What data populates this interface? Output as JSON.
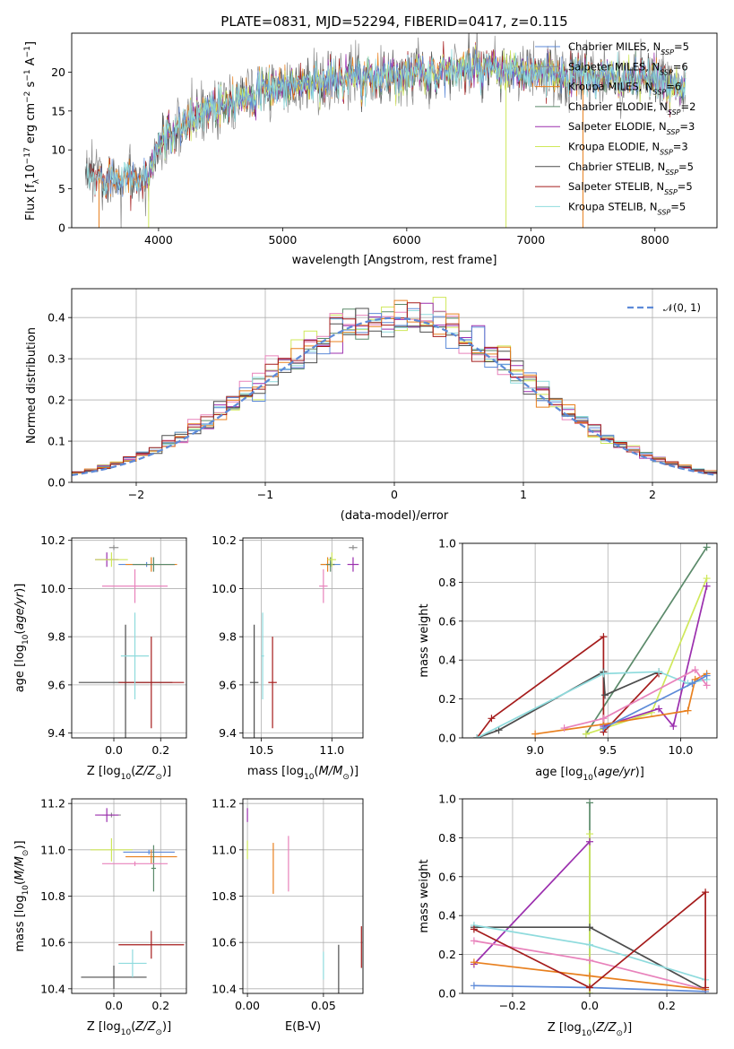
{
  "colors": {
    "chabrier_miles": "#5d8ad8",
    "salpeter_miles": "#8d8d8d",
    "kroupa_miles": "#e8801f",
    "chabrier_elodie": "#5b8a6a",
    "salpeter_elodie": "#9b2fae",
    "kroupa_elodie": "#cfe85a",
    "chabrier_stelib": "#4d4d4d",
    "salpeter_stelib": "#a51c1c",
    "kroupa_stelib": "#8fdbdd",
    "pink": "#e882bb",
    "normal": "#5d8ad8",
    "grid": "#b0b0b0"
  },
  "chart_data": [
    {
      "id": "spectrum",
      "type": "line",
      "title": "PLATE=0831, MJD=52294, FIBERID=0417, z=0.115",
      "xlabel": "wavelength [Angstrom, rest frame]",
      "ylabel": "Flux [f_λ10⁻¹⁷ erg cm⁻² s⁻¹ A⁻¹]",
      "xlim": [
        3300,
        8500
      ],
      "ylim": [
        0,
        25
      ],
      "xticks": [
        4000,
        5000,
        6000,
        7000,
        8000
      ],
      "yticks": [
        0,
        5,
        10,
        15,
        20
      ],
      "grid": false,
      "legend_position": "top-right",
      "series": [
        {
          "name": "Chabrier MILES, N_SSP=5",
          "n_ssp": "5"
        },
        {
          "name": "Salpeter MILES, N_SSP=6",
          "n_ssp": "6"
        },
        {
          "name": "Kroupa MILES, N_SSP=6",
          "n_ssp": "6"
        },
        {
          "name": "Chabrier ELODIE, N_SSP=2",
          "n_ssp": "2"
        },
        {
          "name": "Salpeter ELODIE, N_SSP=3",
          "n_ssp": "3"
        },
        {
          "name": "Kroupa ELODIE, N_SSP=3",
          "n_ssp": "3"
        },
        {
          "name": "Chabrier STELIB, N_SSP=5",
          "n_ssp": "5"
        },
        {
          "name": "Salpeter STELIB, N_SSP=5",
          "n_ssp": "5"
        },
        {
          "name": "Kroupa STELIB, N_SSP=5",
          "n_ssp": "5"
        }
      ],
      "legend_items": [
        {
          "pre": "Chabrier MILES, N",
          "sub": "SSP",
          "post": "=5"
        },
        {
          "pre": "Salpeter MILES, N",
          "sub": "SSP",
          "post": "=6"
        },
        {
          "pre": "Kroupa MILES, N",
          "sub": "SSP",
          "post": "=6"
        },
        {
          "pre": "Chabrier ELODIE, N",
          "sub": "SSP",
          "post": "=2"
        },
        {
          "pre": "Salpeter ELODIE, N",
          "sub": "SSP",
          "post": "=3"
        },
        {
          "pre": "Kroupa ELODIE, N",
          "sub": "SSP",
          "post": "=3"
        },
        {
          "pre": "Chabrier STELIB, N",
          "sub": "SSP",
          "post": "=5"
        },
        {
          "pre": "Salpeter STELIB, N",
          "sub": "SSP",
          "post": "=5"
        },
        {
          "pre": "Kroupa STELIB, N",
          "sub": "SSP",
          "post": "=5"
        }
      ],
      "continuum": {
        "x": [
          3450,
          3550,
          3700,
          3850,
          3920,
          3980,
          4050,
          4200,
          4400,
          4600,
          4800,
          5000,
          5200,
          5400,
          5600,
          5800,
          6000,
          6200,
          6400,
          6600,
          6800,
          7000,
          7200,
          7400,
          7600,
          7800,
          8000,
          8250
        ],
        "y": [
          6.2,
          6.5,
          6.8,
          6.0,
          6.5,
          10.0,
          11.5,
          13.0,
          15.5,
          16.5,
          17.5,
          18.0,
          18.5,
          19.0,
          19.2,
          19.5,
          19.8,
          20.0,
          20.2,
          20.2,
          20.0,
          19.8,
          19.6,
          19.5,
          19.3,
          19.0,
          18.8,
          18.4
        ]
      }
    },
    {
      "id": "residuals",
      "type": "histogram",
      "xlabel": "(data-model)/error",
      "ylabel": "Normed distribution",
      "xlim": [
        -2.5,
        2.5
      ],
      "ylim": [
        0,
        0.47
      ],
      "xticks": [
        -2,
        -1,
        0,
        1,
        2
      ],
      "yticks": [
        0.0,
        0.1,
        0.2,
        0.3,
        0.4
      ],
      "grid": true,
      "legend_position": "top-right",
      "legend_label": "𝒩(0, 1)",
      "bin_width": 0.1
    },
    {
      "id": "age_vs_Z",
      "type": "scatter",
      "xlabel": "Z [log10(Z/Z☉)]",
      "ylabel": "age [log10(age/yr)]",
      "xlim": [
        -0.18,
        0.31
      ],
      "ylim": [
        9.38,
        10.21
      ],
      "xticks": [
        0.0,
        0.2
      ],
      "yticks": [
        9.4,
        9.6,
        9.8,
        10.0,
        10.2
      ],
      "grid": true,
      "points": [
        {
          "series": "chabrier_miles",
          "x": 0.14,
          "y": 10.1,
          "xerr": 0.12,
          "yerr": 0.01
        },
        {
          "series": "salpeter_miles",
          "x": 0.0,
          "y": 10.17,
          "xerr": 0.02,
          "yerr": 0.01
        },
        {
          "series": "kroupa_miles",
          "x": 0.16,
          "y": 10.1,
          "xerr": 0.11,
          "yerr": 0.03
        },
        {
          "series": "chabrier_elodie",
          "x": 0.17,
          "y": 10.1,
          "xerr": 0.09,
          "yerr": 0.03
        },
        {
          "series": "salpeter_elodie",
          "x": -0.03,
          "y": 10.12,
          "xerr": 0.05,
          "yerr": 0.03
        },
        {
          "series": "kroupa_elodie",
          "x": -0.01,
          "y": 10.12,
          "xerr": 0.07,
          "yerr": 0.03
        },
        {
          "series": "chabrier_stelib",
          "x": 0.05,
          "y": 9.61,
          "xerr": 0.2,
          "yerr": 0.24
        },
        {
          "series": "salpeter_stelib",
          "x": 0.16,
          "y": 9.61,
          "xerr": 0.14,
          "yerr": 0.19
        },
        {
          "series": "kroupa_stelib",
          "x": 0.09,
          "y": 9.72,
          "xerr": 0.06,
          "yerr": 0.18
        },
        {
          "series": "pink",
          "x": 0.09,
          "y": 10.01,
          "xerr": 0.14,
          "yerr": 0.07
        }
      ]
    },
    {
      "id": "age_vs_mass",
      "type": "scatter",
      "xlabel": "mass [log10(M/M☉)]",
      "ylabel": "",
      "xlim": [
        10.37,
        11.22
      ],
      "ylim": [
        9.38,
        10.21
      ],
      "xticks": [
        10.5,
        11.0
      ],
      "yticks": [
        9.4,
        9.6,
        9.8,
        10.0,
        10.2
      ],
      "grid": true,
      "points": [
        {
          "series": "chabrier_miles",
          "x": 10.99,
          "y": 10.1,
          "xerr": 0.07,
          "yerr": 0.01
        },
        {
          "series": "salpeter_miles",
          "x": 11.15,
          "y": 10.17,
          "xerr": 0.03,
          "yerr": 0.01
        },
        {
          "series": "kroupa_miles",
          "x": 10.97,
          "y": 10.1,
          "xerr": 0.05,
          "yerr": 0.03
        },
        {
          "series": "chabrier_elodie",
          "x": 10.99,
          "y": 10.1,
          "xerr": 0.03,
          "yerr": 0.03
        },
        {
          "series": "salpeter_elodie",
          "x": 11.15,
          "y": 10.1,
          "xerr": 0.04,
          "yerr": 0.03
        },
        {
          "series": "kroupa_elodie",
          "x": 11.0,
          "y": 10.12,
          "xerr": 0.03,
          "yerr": 0.03
        },
        {
          "series": "chabrier_stelib",
          "x": 10.45,
          "y": 9.61,
          "xerr": 0.03,
          "yerr": 0.24
        },
        {
          "series": "salpeter_stelib",
          "x": 10.58,
          "y": 9.61,
          "xerr": 0.03,
          "yerr": 0.19
        },
        {
          "series": "kroupa_stelib",
          "x": 10.51,
          "y": 9.72,
          "xerr": 0.01,
          "yerr": 0.18
        },
        {
          "series": "pink",
          "x": 10.94,
          "y": 10.01,
          "xerr": 0.03,
          "yerr": 0.07
        }
      ]
    },
    {
      "id": "weight_vs_age",
      "type": "line",
      "xlabel": "age [log10(age/yr)]",
      "ylabel": "mass weight",
      "xlim": [
        8.5,
        10.25
      ],
      "ylim": [
        0,
        1
      ],
      "xticks": [
        9.0,
        9.5,
        10.0
      ],
      "yticks": [
        0.0,
        0.2,
        0.4,
        0.6,
        0.8,
        1.0
      ],
      "grid": true,
      "series": [
        {
          "key": "chabrier_elodie",
          "x": [
            9.35,
            10.18
          ],
          "y": [
            0.02,
            0.98
          ]
        },
        {
          "key": "kroupa_elodie",
          "x": [
            9.35,
            9.48,
            9.8,
            10.18
          ],
          "y": [
            0.02,
            0.05,
            0.13,
            0.82
          ]
        },
        {
          "key": "salpeter_elodie",
          "x": [
            9.47,
            9.85,
            9.95,
            10.18
          ],
          "y": [
            0.06,
            0.15,
            0.06,
            0.78
          ]
        },
        {
          "key": "salpeter_stelib",
          "x": [
            8.6,
            8.7,
            9.47,
            9.47,
            9.85
          ],
          "y": [
            0.0,
            0.1,
            0.52,
            0.03,
            0.33
          ]
        },
        {
          "key": "chabrier_stelib",
          "x": [
            8.6,
            8.75,
            9.47,
            9.48,
            9.85
          ],
          "y": [
            0.0,
            0.04,
            0.34,
            0.22,
            0.34
          ]
        },
        {
          "key": "kroupa_stelib",
          "x": [
            8.6,
            9.47,
            9.85,
            10.05,
            10.18
          ],
          "y": [
            0.0,
            0.33,
            0.34,
            0.28,
            0.3
          ]
        },
        {
          "key": "kroupa_miles",
          "x": [
            9.0,
            9.47,
            10.05,
            10.1,
            10.18
          ],
          "y": [
            0.02,
            0.07,
            0.14,
            0.3,
            0.33
          ]
        },
        {
          "key": "pink",
          "x": [
            9.2,
            9.47,
            10.1,
            10.18
          ],
          "y": [
            0.05,
            0.1,
            0.35,
            0.27
          ]
        },
        {
          "key": "chabrier_miles",
          "x": [
            9.47,
            10.08,
            10.18
          ],
          "y": [
            0.05,
            0.28,
            0.32
          ]
        }
      ]
    },
    {
      "id": "mass_vs_Z",
      "type": "scatter",
      "xlabel": "Z [log10(Z/Z☉)]",
      "ylabel": "mass [log10(M/M☉)]",
      "xlim": [
        -0.18,
        0.31
      ],
      "ylim": [
        10.38,
        11.22
      ],
      "xticks": [
        0.0,
        0.2
      ],
      "yticks": [
        10.4,
        10.6,
        10.8,
        11.0,
        11.2
      ],
      "grid": true,
      "points": [
        {
          "series": "chabrier_miles",
          "x": 0.15,
          "y": 10.99,
          "xerr": 0.11,
          "yerr": 0.01
        },
        {
          "series": "salpeter_miles",
          "x": -0.01,
          "y": 11.15,
          "xerr": 0.04,
          "yerr": 0.01
        },
        {
          "series": "kroupa_miles",
          "x": 0.16,
          "y": 10.97,
          "xerr": 0.11,
          "yerr": 0.03
        },
        {
          "series": "chabrier_elodie",
          "x": 0.17,
          "y": 10.92,
          "xerr": 0.01,
          "yerr": 0.1
        },
        {
          "series": "salpeter_elodie",
          "x": -0.03,
          "y": 11.15,
          "xerr": 0.05,
          "yerr": 0.03
        },
        {
          "series": "kroupa_elodie",
          "x": -0.01,
          "y": 11.0,
          "xerr": 0.09,
          "yerr": 0.05
        },
        {
          "series": "chabrier_stelib",
          "x": 0.0,
          "y": 10.45,
          "xerr": 0.14,
          "yerr": 0.05
        },
        {
          "series": "salpeter_stelib",
          "x": 0.16,
          "y": 10.59,
          "xerr": 0.14,
          "yerr": 0.06
        },
        {
          "series": "kroupa_stelib",
          "x": 0.08,
          "y": 10.51,
          "xerr": 0.06,
          "yerr": 0.06
        },
        {
          "series": "pink",
          "x": 0.09,
          "y": 10.94,
          "xerr": 0.14,
          "yerr": 0.01
        }
      ]
    },
    {
      "id": "mass_vs_ebv",
      "type": "scatter",
      "xlabel": "E(B-V)",
      "ylabel": "",
      "xlim": [
        -0.003,
        0.076
      ],
      "ylim": [
        10.38,
        11.22
      ],
      "xticks": [
        0.0,
        0.05
      ],
      "yticks": [
        10.4,
        10.6,
        10.8,
        11.0,
        11.2
      ],
      "grid": true,
      "points": [
        {
          "series": "salpeter_elodie",
          "x": 0.0,
          "y": 11.15,
          "xerr": 0,
          "yerr": 0.03
        },
        {
          "series": "kroupa_elodie",
          "x": 0.0,
          "y": 11.0,
          "xerr": 0,
          "yerr": 0.04
        },
        {
          "series": "kroupa_miles",
          "x": 0.017,
          "y": 10.92,
          "xerr": 0,
          "yerr": 0.11
        },
        {
          "series": "pink",
          "x": 0.027,
          "y": 10.94,
          "xerr": 0,
          "yerr": 0.12
        },
        {
          "series": "kroupa_stelib",
          "x": 0.05,
          "y": 10.5,
          "xerr": 0,
          "yerr": 0.06
        },
        {
          "series": "chabrier_stelib",
          "x": 0.06,
          "y": 10.47,
          "xerr": 0,
          "yerr": 0.12
        },
        {
          "series": "salpeter_stelib",
          "x": 0.075,
          "y": 10.58,
          "xerr": 0,
          "yerr": 0.09
        }
      ]
    },
    {
      "id": "weight_vs_Z",
      "type": "line",
      "xlabel": "Z [log10(Z/Z☉)]",
      "ylabel": "mass weight",
      "xlim": [
        -0.33,
        0.33
      ],
      "ylim": [
        0,
        1
      ],
      "xticks": [
        -0.2,
        0.0,
        0.2
      ],
      "yticks": [
        0.0,
        0.2,
        0.4,
        0.6,
        0.8,
        1.0
      ],
      "grid": true,
      "series": [
        {
          "key": "chabrier_elodie",
          "x": [
            0.0,
            0.0
          ],
          "y": [
            0.0,
            0.98
          ]
        },
        {
          "key": "kroupa_elodie",
          "x": [
            0.0,
            0.0
          ],
          "y": [
            0.0,
            0.82
          ]
        },
        {
          "key": "salpeter_elodie",
          "x": [
            -0.3,
            0.0
          ],
          "y": [
            0.15,
            0.78
          ]
        },
        {
          "key": "chabrier_stelib",
          "x": [
            -0.3,
            0.0,
            0.3
          ],
          "y": [
            0.34,
            0.34,
            0.02
          ]
        },
        {
          "key": "kroupa_stelib",
          "x": [
            -0.3,
            0.0,
            0.3
          ],
          "y": [
            0.35,
            0.25,
            0.07
          ]
        },
        {
          "key": "pink",
          "x": [
            -0.3,
            0.0,
            0.3
          ],
          "y": [
            0.27,
            0.17,
            0.02
          ]
        },
        {
          "key": "kroupa_miles",
          "x": [
            -0.3,
            0.0,
            0.3
          ],
          "y": [
            0.16,
            0.09,
            0.02
          ]
        },
        {
          "key": "chabrier_miles",
          "x": [
            -0.3,
            0.0,
            0.3
          ],
          "y": [
            0.04,
            0.03,
            0.01
          ]
        },
        {
          "key": "salpeter_stelib",
          "x": [
            -0.3,
            0.0,
            0.3,
            0.3
          ],
          "y": [
            0.33,
            0.03,
            0.52,
            0.03
          ]
        }
      ]
    }
  ]
}
